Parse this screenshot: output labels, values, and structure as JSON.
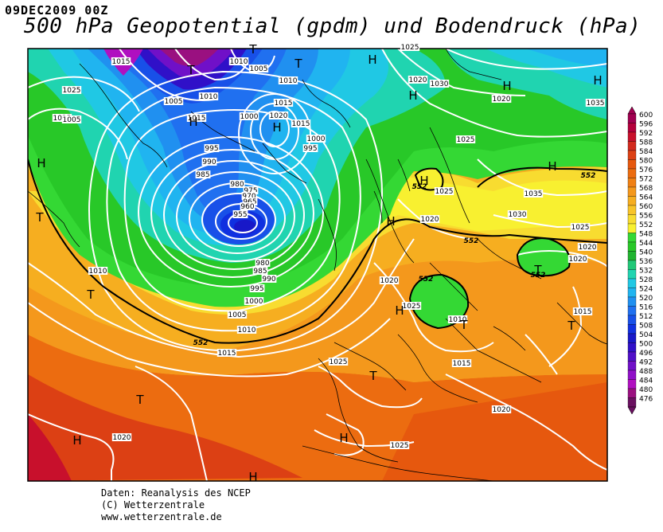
{
  "header": {
    "date": "09DEC2009 00Z",
    "title": "500 hPa Geopotential (gpdm) und Bodendruck (hPa)"
  },
  "credits": {
    "line1": "Daten: Reanalysis des NCEP",
    "line2": "(C) Wetterzentrale",
    "line3": "www.wetterzentrale.de"
  },
  "legend": {
    "levels": [
      "600",
      "596",
      "592",
      "588",
      "584",
      "580",
      "576",
      "572",
      "568",
      "564",
      "560",
      "556",
      "552",
      "548",
      "544",
      "540",
      "536",
      "532",
      "528",
      "524",
      "520",
      "516",
      "512",
      "508",
      "504",
      "500",
      "496",
      "492",
      "488",
      "484",
      "480",
      "476"
    ],
    "colors": [
      "#a00050",
      "#b4003c",
      "#c8102c",
      "#d22a1e",
      "#dc4014",
      "#e6580e",
      "#ec6c10",
      "#f08014",
      "#f4981c",
      "#f6ae20",
      "#f8c428",
      "#f8dc30",
      "#f8f030",
      "#34d834",
      "#28c828",
      "#20b430",
      "#20c878",
      "#20d4b0",
      "#20c8e4",
      "#20b4f0",
      "#2090f0",
      "#2070f0",
      "#1850e8",
      "#1030e0",
      "#1818c8",
      "#3010c8",
      "#5010c8",
      "#7010c8",
      "#9010c8",
      "#b010c0",
      "#9a1080",
      "#6a1060"
    ],
    "colors_note": "top=600 (dark red) to bottom=476 (dark purple)"
  },
  "map": {
    "pressure_labels": [
      {
        "t": "1015",
        "id": "a"
      },
      {
        "t": "1010",
        "id": "b"
      },
      {
        "t": "1005",
        "id": "c"
      },
      {
        "t": "1025",
        "id": "d"
      },
      {
        "t": "1025",
        "id": "e"
      },
      {
        "t": "1005",
        "id": "f"
      },
      {
        "t": "1010",
        "id": "g"
      },
      {
        "t": "1015",
        "id": "h"
      },
      {
        "t": "1000",
        "id": "i"
      },
      {
        "t": "1010",
        "id": "j"
      },
      {
        "t": "1015",
        "id": "k"
      },
      {
        "t": "1020",
        "id": "l"
      },
      {
        "t": "1000",
        "id": "m"
      },
      {
        "t": "995",
        "id": "n"
      },
      {
        "t": "995",
        "id": "o"
      },
      {
        "t": "990",
        "id": "p"
      },
      {
        "t": "985",
        "id": "q"
      },
      {
        "t": "980",
        "id": "r"
      },
      {
        "t": "975",
        "id": "s"
      },
      {
        "t": "970",
        "id": "t"
      },
      {
        "t": "965",
        "id": "u"
      },
      {
        "t": "960",
        "id": "v"
      },
      {
        "t": "955",
        "id": "w"
      },
      {
        "t": "1005",
        "id": "x"
      },
      {
        "t": "980",
        "id": "y"
      },
      {
        "t": "985",
        "id": "z"
      },
      {
        "t": "990",
        "id": "aa"
      },
      {
        "t": "995",
        "id": "ab"
      },
      {
        "t": "1000",
        "id": "ac"
      },
      {
        "t": "1005",
        "id": "ad"
      },
      {
        "t": "1010",
        "id": "ae"
      },
      {
        "t": "1015",
        "id": "af"
      },
      {
        "t": "1010",
        "id": "ag"
      },
      {
        "t": "1020",
        "id": "ah"
      },
      {
        "t": "1030",
        "id": "ai"
      },
      {
        "t": "1030",
        "id": "aj"
      },
      {
        "t": "1020",
        "id": "ak"
      },
      {
        "t": "1035",
        "id": "al"
      },
      {
        "t": "1025",
        "id": "am"
      },
      {
        "t": "1025",
        "id": "an"
      },
      {
        "t": "1020",
        "id": "ao"
      },
      {
        "t": "1035",
        "id": "ap"
      },
      {
        "t": "1030",
        "id": "aq"
      },
      {
        "t": "1025",
        "id": "ar"
      },
      {
        "t": "1020",
        "id": "as"
      },
      {
        "t": "1020",
        "id": "at"
      },
      {
        "t": "1020",
        "id": "au"
      },
      {
        "t": "1025",
        "id": "av"
      },
      {
        "t": "1010",
        "id": "aw"
      },
      {
        "t": "1015",
        "id": "ax"
      },
      {
        "t": "1015",
        "id": "ay"
      },
      {
        "t": "1025",
        "id": "az"
      },
      {
        "t": "1020",
        "id": "ba"
      },
      {
        "t": "1020",
        "id": "bb"
      },
      {
        "t": "1025",
        "id": "bc"
      },
      {
        "t": "1015",
        "id": "bd"
      },
      {
        "t": "1025",
        "id": "be"
      }
    ],
    "contour_labels_552": [
      "552",
      "552",
      "552",
      "552",
      "552",
      "552"
    ],
    "pressure_centers": [
      "T",
      "T",
      "T",
      "T",
      "T",
      "H",
      "H",
      "H",
      "H",
      "H",
      "H",
      "H",
      "H",
      "H",
      "H",
      "H",
      "T",
      "T",
      "T",
      "T",
      "H",
      "H",
      "H",
      "T"
    ]
  }
}
